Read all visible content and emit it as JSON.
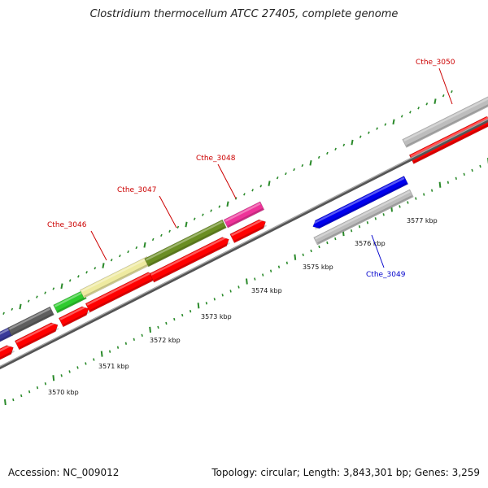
{
  "title": "Clostridium thermocellum ATCC 27405, complete genome",
  "footer": {
    "accession": "Accession: NC_009012",
    "summary": "Topology: circular; Length: 3,843,301 bp; Genes: 3,259"
  },
  "tick_labels": [
    "3570 kbp",
    "3571 kbp",
    "3572 kbp",
    "3573 kbp",
    "3574 kbp",
    "3575 kbp",
    "3576 kbp",
    "3577 kbp"
  ],
  "gene_labels": [
    {
      "text": "Cthe_3046",
      "color": "#cc0000"
    },
    {
      "text": "Cthe_3047",
      "color": "#cc0000"
    },
    {
      "text": "Cthe_3048",
      "color": "#cc0000"
    },
    {
      "text": "Cthe_3050",
      "color": "#cc0000"
    },
    {
      "text": "Cthe_3049",
      "color": "#0000cc"
    }
  ],
  "colors": {
    "cds_red": "#ff0000",
    "gene_grey": "#bdbdbd",
    "dark_grey": "#5e5e5e",
    "green": "#2ecc2e",
    "khaki": "#eeeaa0",
    "olive": "#6b8e23",
    "magenta": "#ee3399",
    "blue": "#0000ee",
    "navy": "#3a3a9a",
    "backbone": "#8a8a8a",
    "tick_green": "#2a8a2a"
  }
}
